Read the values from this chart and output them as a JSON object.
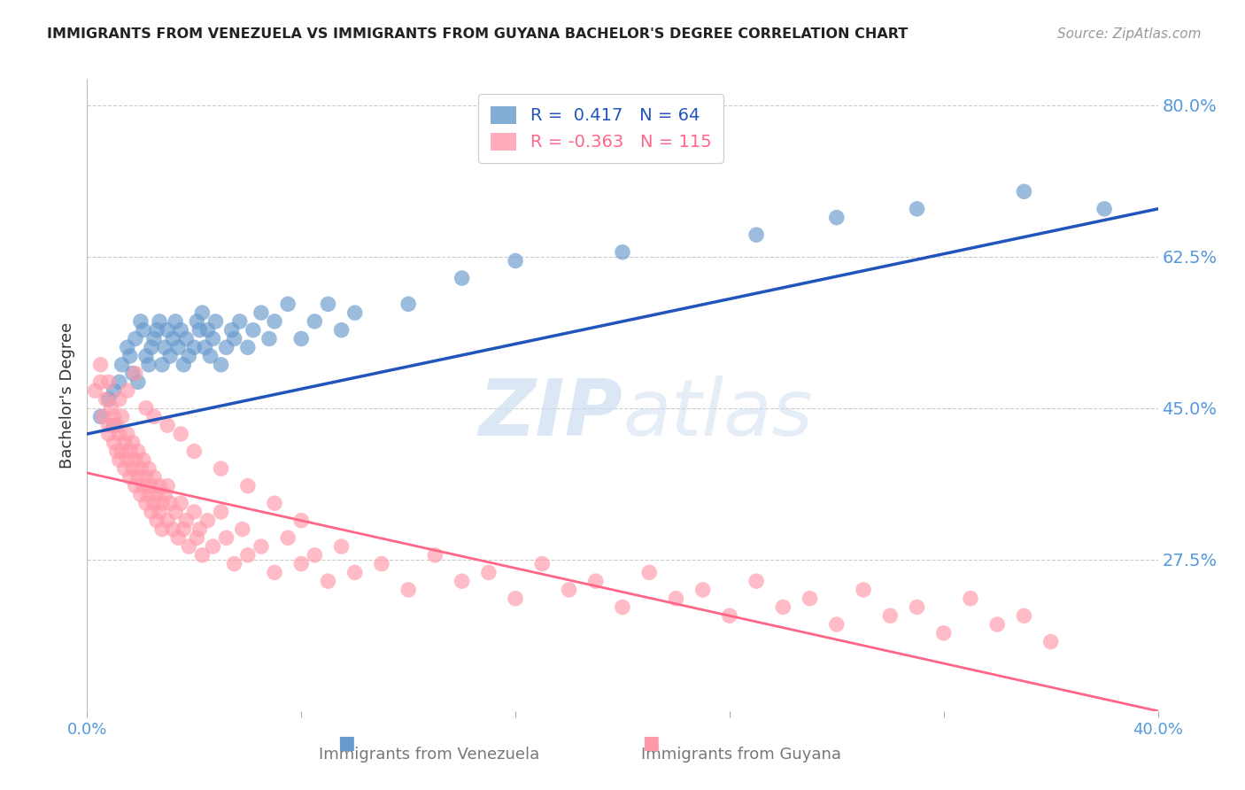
{
  "title": "IMMIGRANTS FROM VENEZUELA VS IMMIGRANTS FROM GUYANA BACHELOR'S DEGREE CORRELATION CHART",
  "source": "Source: ZipAtlas.com",
  "ylabel": "Bachelor's Degree",
  "watermark": "ZIPatlas",
  "xmin": 0.0,
  "xmax": 0.4,
  "ymin": 0.1,
  "ymax": 0.83,
  "yticks": [
    0.275,
    0.45,
    0.625,
    0.8
  ],
  "ytick_labels": [
    "27.5%",
    "45.0%",
    "62.5%",
    "80.0%"
  ],
  "xticks": [
    0.0,
    0.08,
    0.16,
    0.24,
    0.32,
    0.4
  ],
  "xtick_labels": [
    "0.0%",
    "",
    "",
    "",
    "",
    "40.0%"
  ],
  "legend_R_venezuela": "R =  0.417",
  "legend_N_venezuela": "N = 64",
  "legend_R_guyana": "R = -0.363",
  "legend_N_guyana": "N = 115",
  "venezuela_color": "#6699CC",
  "guyana_color": "#FF99AA",
  "venezuela_line_color": "#2255BB",
  "guyana_line_color": "#FF6688",
  "tick_color": "#5599DD",
  "grid_color": "#CCCCCC",
  "background_color": "#FFFFFF",
  "venezuela_x": [
    0.005,
    0.008,
    0.01,
    0.01,
    0.012,
    0.013,
    0.015,
    0.016,
    0.017,
    0.018,
    0.019,
    0.02,
    0.021,
    0.022,
    0.023,
    0.024,
    0.025,
    0.026,
    0.027,
    0.028,
    0.029,
    0.03,
    0.031,
    0.032,
    0.033,
    0.034,
    0.035,
    0.036,
    0.037,
    0.038,
    0.04,
    0.041,
    0.042,
    0.043,
    0.044,
    0.045,
    0.046,
    0.047,
    0.048,
    0.05,
    0.052,
    0.054,
    0.055,
    0.057,
    0.06,
    0.062,
    0.065,
    0.068,
    0.07,
    0.075,
    0.08,
    0.085,
    0.09,
    0.095,
    0.1,
    0.12,
    0.14,
    0.16,
    0.2,
    0.25,
    0.28,
    0.31,
    0.35,
    0.38
  ],
  "venezuela_y": [
    0.44,
    0.46,
    0.47,
    0.43,
    0.48,
    0.5,
    0.52,
    0.51,
    0.49,
    0.53,
    0.48,
    0.55,
    0.54,
    0.51,
    0.5,
    0.52,
    0.53,
    0.54,
    0.55,
    0.5,
    0.52,
    0.54,
    0.51,
    0.53,
    0.55,
    0.52,
    0.54,
    0.5,
    0.53,
    0.51,
    0.52,
    0.55,
    0.54,
    0.56,
    0.52,
    0.54,
    0.51,
    0.53,
    0.55,
    0.5,
    0.52,
    0.54,
    0.53,
    0.55,
    0.52,
    0.54,
    0.56,
    0.53,
    0.55,
    0.57,
    0.53,
    0.55,
    0.57,
    0.54,
    0.56,
    0.57,
    0.6,
    0.62,
    0.63,
    0.65,
    0.67,
    0.68,
    0.7,
    0.68
  ],
  "guyana_x": [
    0.003,
    0.005,
    0.006,
    0.007,
    0.008,
    0.008,
    0.009,
    0.01,
    0.01,
    0.011,
    0.011,
    0.012,
    0.012,
    0.013,
    0.013,
    0.014,
    0.014,
    0.015,
    0.015,
    0.016,
    0.016,
    0.017,
    0.017,
    0.018,
    0.018,
    0.019,
    0.019,
    0.02,
    0.02,
    0.021,
    0.021,
    0.022,
    0.022,
    0.023,
    0.023,
    0.024,
    0.024,
    0.025,
    0.025,
    0.026,
    0.026,
    0.027,
    0.027,
    0.028,
    0.028,
    0.029,
    0.03,
    0.03,
    0.031,
    0.032,
    0.033,
    0.034,
    0.035,
    0.036,
    0.037,
    0.038,
    0.04,
    0.041,
    0.042,
    0.043,
    0.045,
    0.047,
    0.05,
    0.052,
    0.055,
    0.058,
    0.06,
    0.065,
    0.07,
    0.075,
    0.08,
    0.085,
    0.09,
    0.095,
    0.1,
    0.11,
    0.12,
    0.13,
    0.14,
    0.15,
    0.16,
    0.17,
    0.18,
    0.19,
    0.2,
    0.21,
    0.22,
    0.23,
    0.24,
    0.25,
    0.26,
    0.27,
    0.28,
    0.29,
    0.3,
    0.31,
    0.32,
    0.33,
    0.34,
    0.35,
    0.36,
    0.005,
    0.008,
    0.012,
    0.015,
    0.018,
    0.022,
    0.025,
    0.03,
    0.035,
    0.04,
    0.05,
    0.06,
    0.07,
    0.08
  ],
  "guyana_y": [
    0.47,
    0.48,
    0.44,
    0.46,
    0.43,
    0.42,
    0.45,
    0.44,
    0.41,
    0.43,
    0.4,
    0.42,
    0.39,
    0.44,
    0.4,
    0.41,
    0.38,
    0.42,
    0.39,
    0.4,
    0.37,
    0.41,
    0.38,
    0.39,
    0.36,
    0.4,
    0.37,
    0.38,
    0.35,
    0.39,
    0.36,
    0.37,
    0.34,
    0.38,
    0.35,
    0.36,
    0.33,
    0.37,
    0.34,
    0.35,
    0.32,
    0.36,
    0.33,
    0.34,
    0.31,
    0.35,
    0.36,
    0.32,
    0.34,
    0.31,
    0.33,
    0.3,
    0.34,
    0.31,
    0.32,
    0.29,
    0.33,
    0.3,
    0.31,
    0.28,
    0.32,
    0.29,
    0.33,
    0.3,
    0.27,
    0.31,
    0.28,
    0.29,
    0.26,
    0.3,
    0.27,
    0.28,
    0.25,
    0.29,
    0.26,
    0.27,
    0.24,
    0.28,
    0.25,
    0.26,
    0.23,
    0.27,
    0.24,
    0.25,
    0.22,
    0.26,
    0.23,
    0.24,
    0.21,
    0.25,
    0.22,
    0.23,
    0.2,
    0.24,
    0.21,
    0.22,
    0.19,
    0.23,
    0.2,
    0.21,
    0.18,
    0.5,
    0.48,
    0.46,
    0.47,
    0.49,
    0.45,
    0.44,
    0.43,
    0.42,
    0.4,
    0.38,
    0.36,
    0.34,
    0.32
  ]
}
